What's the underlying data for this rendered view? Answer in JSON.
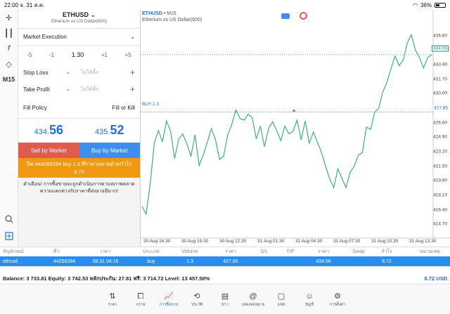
{
  "status": {
    "time": "22:00",
    "date": "จ. 31 ส.ค.",
    "battery": "36%"
  },
  "toolbar": {
    "timeframe": "M15"
  },
  "panel": {
    "symbol": "ETHUSD",
    "symbol_desc": "Etherium vs US Dollar(600)",
    "execution": "Market Execution",
    "vol_steps": [
      "-5",
      "-1",
      "1.30",
      "+1",
      "+5"
    ],
    "stop_loss_label": "Stop Loss",
    "take_profit_label": "Take Profit",
    "minus": "-",
    "plus": "+",
    "not_set": "ไม่ได้ตั้ง",
    "fill_policy_label": "Fill Policy",
    "fill_policy_value": "Fill or Kill",
    "bid_small": "434.",
    "bid_big": "56",
    "ask_small": "435.",
    "ask_big": "52",
    "sell_label": "Sell by Market",
    "buy_label": "Buy by Market",
    "notice": "ปิด #44268284 buy 1.3 ที่ราคาตลาดด้วยกำไร 8.72",
    "warning": "คำเตือน! การซื้อขายจะถูกดำเนินการตามสภาพตลาด ความแตกต่างกับราคาที่ส่งอาจมีมาก!"
  },
  "chart": {
    "symbol": "ETHUSD",
    "timeframe": "• M15",
    "desc": "Etherium vs US Dollar(600)",
    "buy_line_label": "BUY 1.3",
    "y_ticks": [
      "436.80",
      "435.10",
      "433.40",
      "431.70",
      "430.00",
      "428.30",
      "426.60",
      "424.90",
      "423.20",
      "421.50",
      "419.80",
      "418.10",
      "416.40",
      "414.70"
    ],
    "bid_tag": "434.56",
    "open_tag": "427.85",
    "x_ticks": [
      "30 Aug 16:30",
      "30 Aug 19:30",
      "30 Aug 22:30",
      "31 Aug 01:30",
      "31 Aug 04:30",
      "31 Aug 07:30",
      "31 Aug 10:30",
      "31 Aug 13:30"
    ],
    "colors": {
      "line": "#3cb371",
      "buy": "#2a6ac8",
      "bid": "#2a8c8c"
    }
  },
  "chart_data": {
    "type": "line",
    "series": [
      {
        "values": [
          416.8,
          415.9,
          419.4,
          424.2,
          425.7,
          424.4,
          426.8,
          425.6,
          422.4,
          424.7,
          425.3,
          424.1,
          422.7,
          425.2,
          421.6,
          422.8,
          424.3,
          425.9,
          424.6,
          422.3,
          422.7,
          425.2,
          426.4,
          428.1,
          427.1,
          426.9,
          427.6,
          427.2,
          424.7,
          426.2,
          423.8,
          425.9,
          426.7,
          425.7,
          424.5,
          426.2,
          425.3,
          425.6,
          426.9,
          424.6,
          426.8,
          424.2,
          425.5,
          424.3,
          423.1,
          421.5,
          420.0,
          419.0,
          421.2,
          420.1,
          419.0,
          420.8,
          421.5,
          422.8,
          423.1,
          426.1,
          425.8,
          427.8,
          428.3,
          430.2,
          431.3,
          432.9,
          434.4,
          433.3,
          433.9,
          435.9,
          436.9,
          435.1,
          434.2,
          433.0,
          434.2,
          434.56
        ]
      }
    ],
    "ylim": [
      413.5,
      438.0
    ]
  },
  "table": {
    "headers": [
      "สัญลักษณ์",
      "ตั๋ว",
      "เวลา",
      "ประเภท",
      "Volume",
      "ราคา",
      "S/L",
      "T/P",
      "ราคา",
      "Swap",
      "กำไร",
      "หมายเหตุ"
    ],
    "row": [
      "ethusd",
      "44268284",
      "08.31 04:16",
      "buy",
      "1.3",
      "427.85",
      "",
      "",
      "434.56",
      "",
      "8.72",
      ""
    ],
    "balance": "Balance: 3 733.81 Equity: 3 742.53 หลักประกัน: 27.81 ฟรี: 3 714.72 Level: 13 457.50%",
    "total_profit": "8.72 USD"
  },
  "tabs": [
    {
      "label": "ราคา",
      "icon": "⇅"
    },
    {
      "label": "กราฟ",
      "icon": "⧠"
    },
    {
      "label": "การซื้อขาย",
      "icon": "📈"
    },
    {
      "label": "ประวัติ",
      "icon": "⟲"
    },
    {
      "label": "ข่าว",
      "icon": "▤"
    },
    {
      "label": "กล่องจดหมาย",
      "icon": "@"
    },
    {
      "label": "แชท",
      "icon": "▢"
    },
    {
      "label": "บัญชี",
      "icon": "☺"
    },
    {
      "label": "การตั้งค่า",
      "icon": "⚙"
    }
  ]
}
